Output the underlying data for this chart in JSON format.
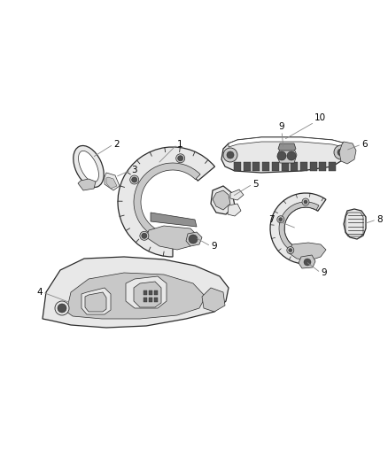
{
  "background_color": "#ffffff",
  "fig_width": 4.38,
  "fig_height": 5.33,
  "dpi": 100,
  "lc": "#2a2a2a",
  "lw_main": 0.9,
  "lw_thin": 0.5,
  "label_fontsize": 7.5,
  "label_color": "#000000",
  "leader_color": "#888888",
  "leader_lw": 0.6,
  "fill_light": "#e8e8e8",
  "fill_mid": "#c8c8c8",
  "fill_dark": "#909090",
  "fill_very_dark": "#505050"
}
